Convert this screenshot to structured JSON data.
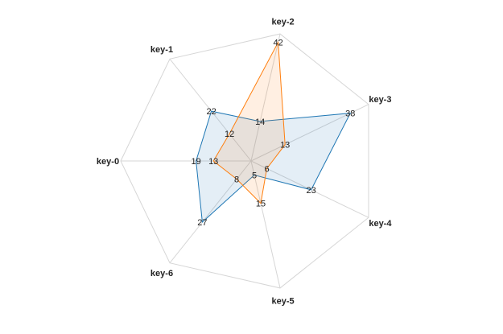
{
  "chart_data": {
    "type": "radar",
    "categories": [
      "key-0",
      "key-1",
      "key-2",
      "key-3",
      "key-4",
      "key-5",
      "key-6"
    ],
    "series": [
      {
        "values": [
          19,
          22,
          14,
          38,
          23,
          5,
          27
        ],
        "color": "#1f77b4"
      },
      {
        "values": [
          13,
          12,
          42,
          13,
          6,
          15,
          8
        ],
        "color": "#ff7f0e"
      }
    ],
    "rmax": 45,
    "grid": true,
    "fill_opacity": 0.12
  }
}
